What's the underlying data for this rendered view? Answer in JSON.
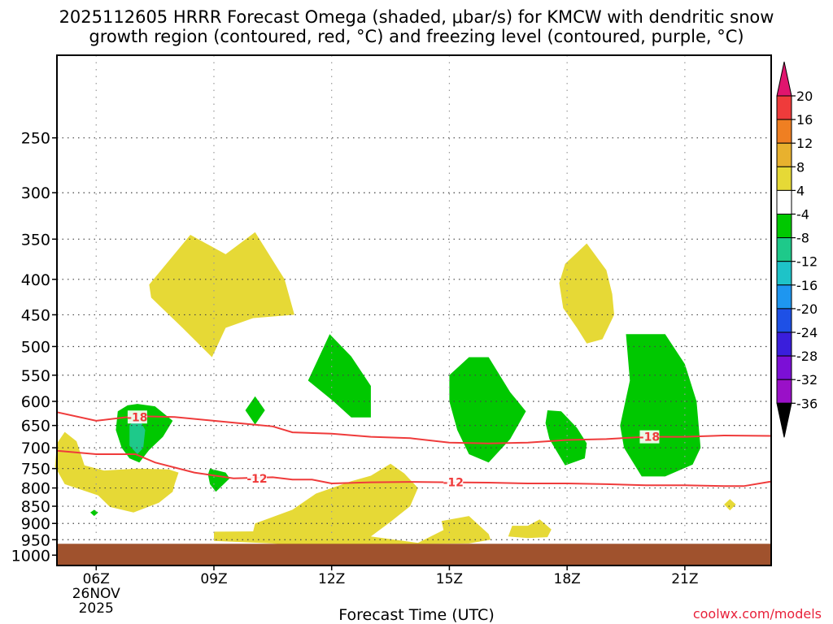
{
  "title_line1": "2025112605 HRRR Forecast Omega (shaded, μbar/s) for KMCW with dendritic snow",
  "title_line2": "growth region (contoured, red, °C) and freezing level (contoured, purple, °C)",
  "xlabel": "Forecast Time (UTC)",
  "credit": "coolwx.com/models",
  "chart_data": {
    "type": "time-height",
    "x_ticks": [
      {
        "hour": 6,
        "label": "06Z",
        "sub": [
          "26NOV",
          "2025"
        ]
      },
      {
        "hour": 9,
        "label": "09Z"
      },
      {
        "hour": 12,
        "label": "12Z"
      },
      {
        "hour": 15,
        "label": "15Z"
      },
      {
        "hour": 18,
        "label": "18Z"
      },
      {
        "hour": 21,
        "label": "21Z"
      }
    ],
    "xlim": [
      5,
      23.2
    ],
    "y_ticks": [
      250,
      300,
      350,
      400,
      450,
      500,
      550,
      600,
      650,
      700,
      750,
      800,
      850,
      900,
      950,
      1000
    ],
    "ylim": [
      190,
      1035
    ],
    "y_scale": "log-pressure",
    "ground_top_hPa": 963,
    "ground_color": "#a0522d",
    "colorbar": {
      "labels": [
        "20",
        "16",
        "12",
        "8",
        "4",
        "-4",
        "-8",
        "-12",
        "-16",
        "-20",
        "-24",
        "-28",
        "-32",
        "-36"
      ],
      "colors": [
        "#e0156e",
        "#ef3b3b",
        "#ef7f22",
        "#e8b12e",
        "#e6d936",
        "#ffffff",
        "#00c800",
        "#1ec98a",
        "#1ec3c8",
        "#1e96f0",
        "#1e50e6",
        "#3a1edc",
        "#7c0fd6",
        "#9a10c8",
        "#a0a0a0",
        "#000000"
      ]
    },
    "shaded_regions": [
      {
        "level": "4",
        "color": "#e6d936",
        "points": [
          [
            7.35,
            407
          ],
          [
            8.4,
            345
          ],
          [
            9.3,
            368
          ],
          [
            10.05,
            342
          ],
          [
            10.8,
            400
          ],
          [
            11.05,
            450
          ],
          [
            10.0,
            455
          ],
          [
            9.3,
            470
          ],
          [
            8.95,
            518
          ],
          [
            8.2,
            470
          ],
          [
            7.4,
            425
          ]
        ]
      },
      {
        "level": "4",
        "color": "#e6d936",
        "points": [
          [
            18.5,
            355
          ],
          [
            19.0,
            388
          ],
          [
            19.15,
            420
          ],
          [
            19.2,
            450
          ],
          [
            18.9,
            488
          ],
          [
            18.5,
            495
          ],
          [
            18.25,
            470
          ],
          [
            17.9,
            440
          ],
          [
            17.8,
            405
          ],
          [
            17.95,
            380
          ]
        ]
      },
      {
        "level": "4",
        "color": "#e6d936",
        "points": [
          [
            5.0,
            690
          ],
          [
            5.2,
            664
          ],
          [
            5.5,
            685
          ],
          [
            5.7,
            742
          ],
          [
            6.2,
            755
          ],
          [
            7.05,
            750
          ],
          [
            7.85,
            752
          ],
          [
            8.1,
            760
          ],
          [
            8.0,
            790
          ],
          [
            7.95,
            810
          ],
          [
            7.6,
            840
          ],
          [
            6.95,
            868
          ],
          [
            6.35,
            852
          ],
          [
            6.05,
            820
          ],
          [
            5.2,
            790
          ],
          [
            4.95,
            745
          ]
        ]
      },
      {
        "level": "4",
        "color": "#e6d936",
        "points": [
          [
            9.0,
            925
          ],
          [
            10.0,
            924
          ],
          [
            10.05,
            900
          ],
          [
            11.0,
            860
          ],
          [
            11.6,
            815
          ],
          [
            12.5,
            782
          ],
          [
            13.0,
            768
          ],
          [
            13.5,
            738
          ],
          [
            13.85,
            762
          ],
          [
            14.2,
            800
          ],
          [
            14.0,
            850
          ],
          [
            13.5,
            895
          ],
          [
            13.0,
            940
          ],
          [
            14.2,
            960
          ],
          [
            14.85,
            920
          ],
          [
            14.8,
            893
          ],
          [
            15.5,
            878
          ],
          [
            16.0,
            932
          ],
          [
            16.05,
            950
          ],
          [
            15.5,
            962
          ],
          [
            11.0,
            968
          ],
          [
            10.5,
            962
          ],
          [
            9.0,
            954
          ]
        ]
      },
      {
        "level": "4",
        "color": "#e6d936",
        "points": [
          [
            16.5,
            940
          ],
          [
            16.6,
            907
          ],
          [
            17.0,
            907
          ],
          [
            17.3,
            888
          ],
          [
            17.6,
            918
          ],
          [
            17.5,
            942
          ],
          [
            17.0,
            945
          ]
        ]
      },
      {
        "level": "4",
        "color": "#e6d936",
        "points": [
          [
            22.0,
            845
          ],
          [
            22.15,
            830
          ],
          [
            22.3,
            845
          ],
          [
            22.15,
            862
          ]
        ]
      },
      {
        "level": "-4",
        "color": "#00c800",
        "points": [
          [
            7.05,
            605
          ],
          [
            7.5,
            610
          ],
          [
            7.95,
            640
          ],
          [
            7.7,
            675
          ],
          [
            7.35,
            705
          ],
          [
            7.1,
            735
          ],
          [
            6.85,
            725
          ],
          [
            6.65,
            700
          ],
          [
            6.5,
            660
          ],
          [
            6.55,
            620
          ],
          [
            6.8,
            608
          ]
        ]
      },
      {
        "level": "-8",
        "color": "#1ec98a",
        "points": [
          [
            7.05,
            628
          ],
          [
            7.25,
            660
          ],
          [
            7.2,
            700
          ],
          [
            7.05,
            715
          ],
          [
            6.85,
            695
          ],
          [
            6.85,
            650
          ]
        ]
      },
      {
        "level": "-4",
        "color": "#00c800",
        "points": [
          [
            8.9,
            750
          ],
          [
            9.3,
            760
          ],
          [
            9.4,
            775
          ],
          [
            9.05,
            810
          ],
          [
            8.9,
            790
          ],
          [
            8.85,
            765
          ]
        ]
      },
      {
        "level": "-4",
        "color": "#00c800",
        "points": [
          [
            10.05,
            590
          ],
          [
            10.3,
            618
          ],
          [
            10.05,
            648
          ],
          [
            9.8,
            618
          ]
        ]
      },
      {
        "level": "-4",
        "color": "#00c800",
        "points": [
          [
            11.95,
            480
          ],
          [
            12.5,
            517
          ],
          [
            13.0,
            570
          ],
          [
            13.0,
            633
          ],
          [
            12.5,
            633
          ],
          [
            12.05,
            600
          ],
          [
            11.4,
            560
          ]
        ]
      },
      {
        "level": "-4",
        "color": "#00c800",
        "points": [
          [
            15.0,
            550
          ],
          [
            15.5,
            518
          ],
          [
            16.0,
            518
          ],
          [
            16.55,
            582
          ],
          [
            16.95,
            620
          ],
          [
            16.55,
            680
          ],
          [
            16.0,
            735
          ],
          [
            15.5,
            715
          ],
          [
            15.2,
            660
          ],
          [
            15.0,
            600
          ]
        ]
      },
      {
        "level": "-4",
        "color": "#00c800",
        "points": [
          [
            17.5,
            618
          ],
          [
            17.85,
            620
          ],
          [
            18.25,
            655
          ],
          [
            18.5,
            690
          ],
          [
            18.45,
            725
          ],
          [
            17.95,
            742
          ],
          [
            17.55,
            680
          ],
          [
            17.45,
            645
          ]
        ]
      },
      {
        "level": "-4",
        "color": "#00c800",
        "points": [
          [
            19.5,
            480
          ],
          [
            20.5,
            480
          ],
          [
            21.0,
            530
          ],
          [
            21.3,
            600
          ],
          [
            21.4,
            700
          ],
          [
            21.2,
            740
          ],
          [
            20.5,
            770
          ],
          [
            19.9,
            770
          ],
          [
            19.45,
            700
          ],
          [
            19.35,
            650
          ],
          [
            19.6,
            560
          ]
        ]
      },
      {
        "level": "-4",
        "color": "#00c800",
        "points": [
          [
            5.95,
            860
          ],
          [
            6.05,
            868
          ],
          [
            5.95,
            878
          ],
          [
            5.85,
            868
          ]
        ]
      }
    ],
    "contours": [
      {
        "label": "-18",
        "color": "#ef3b3b",
        "points": [
          [
            5.0,
            622
          ],
          [
            6.0,
            640
          ],
          [
            7.0,
            630
          ],
          [
            8.0,
            632
          ],
          [
            9.0,
            640
          ],
          [
            10.0,
            648
          ],
          [
            10.5,
            652
          ],
          [
            11.0,
            665
          ],
          [
            12.0,
            668
          ],
          [
            13.0,
            675
          ],
          [
            14.0,
            678
          ],
          [
            15.0,
            688
          ],
          [
            16.0,
            690
          ],
          [
            17.0,
            688
          ],
          [
            18.0,
            682
          ],
          [
            19.0,
            680
          ],
          [
            20.0,
            675
          ],
          [
            21.0,
            675
          ],
          [
            22.0,
            672
          ],
          [
            23.2,
            673
          ]
        ],
        "label_points": [
          [
            7.05,
            632
          ],
          [
            20.1,
            675
          ]
        ]
      },
      {
        "label": "-12",
        "color": "#ef3b3b",
        "points": [
          [
            5.0,
            707
          ],
          [
            6.0,
            715
          ],
          [
            7.0,
            715
          ],
          [
            7.5,
            735
          ],
          [
            8.5,
            760
          ],
          [
            9.5,
            775
          ],
          [
            10.5,
            772
          ],
          [
            11.0,
            778
          ],
          [
            11.5,
            778
          ],
          [
            12.0,
            788
          ],
          [
            13.0,
            785
          ],
          [
            14.0,
            784
          ],
          [
            15.0,
            785
          ],
          [
            16.0,
            786
          ],
          [
            17.0,
            788
          ],
          [
            18.0,
            788
          ],
          [
            19.0,
            790
          ],
          [
            20.0,
            793
          ],
          [
            21.0,
            793
          ],
          [
            22.0,
            795
          ],
          [
            22.5,
            795
          ],
          [
            23.2,
            783
          ]
        ],
        "label_points": [
          [
            10.1,
            775
          ],
          [
            15.1,
            785
          ]
        ]
      }
    ]
  }
}
